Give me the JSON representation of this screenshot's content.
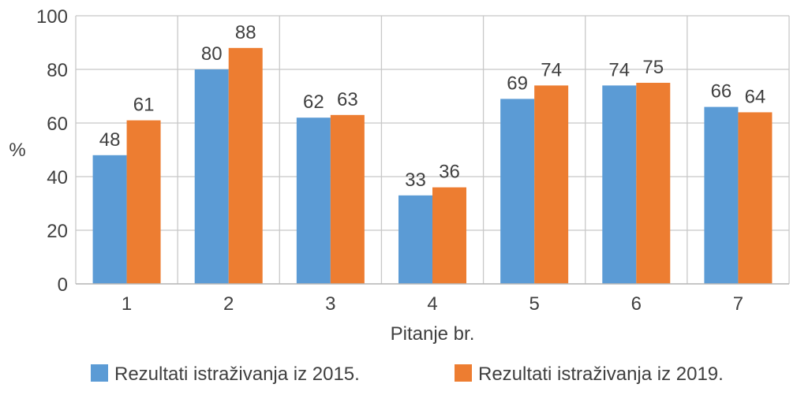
{
  "chart_data": {
    "type": "bar",
    "title": "",
    "xlabel": "Pitanje br.",
    "ylabel": "%",
    "ylim": [
      0,
      100
    ],
    "yticks": [
      0,
      20,
      40,
      60,
      80,
      100
    ],
    "grid": true,
    "legend_position": "bottom",
    "categories": [
      "1",
      "2",
      "3",
      "4",
      "5",
      "6",
      "7"
    ],
    "series": [
      {
        "name": "Rezultati istraživanja iz 2015.",
        "color": "#5B9BD5",
        "values": [
          48,
          80,
          62,
          33,
          69,
          74,
          66
        ]
      },
      {
        "name": "Rezultati istraživanja iz 2019.",
        "color": "#ED7D31",
        "values": [
          61,
          88,
          63,
          36,
          74,
          75,
          64
        ]
      }
    ]
  }
}
